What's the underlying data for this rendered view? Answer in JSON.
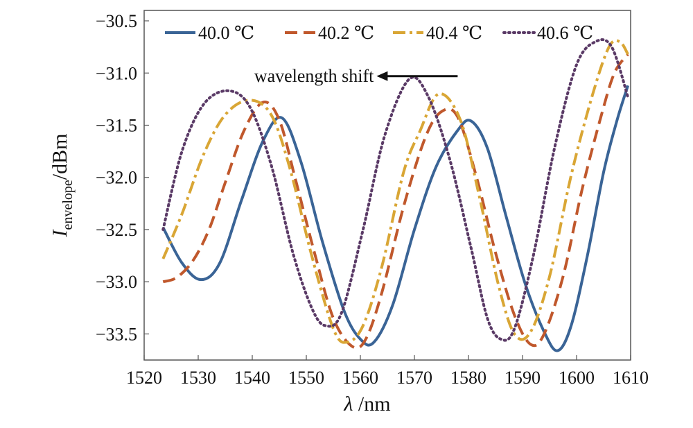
{
  "chart_data": {
    "type": "line",
    "title": "",
    "xlabel_symbol": "λ",
    "xlabel_unit": " /nm",
    "ylabel_symbol": "I",
    "ylabel_subscript": "envelope",
    "ylabel_unit": "/dBm",
    "xlim": [
      1520,
      1610
    ],
    "ylim": [
      -33.75,
      -30.4
    ],
    "xticks": [
      1520,
      1530,
      1540,
      1550,
      1560,
      1570,
      1580,
      1590,
      1600,
      1610
    ],
    "xtick_labels": [
      "1520",
      "1530",
      "1540",
      "1550",
      "1560",
      "1570",
      "1580",
      "1590",
      "1600",
      "1610"
    ],
    "yticks": [
      -30.5,
      -31.0,
      -31.5,
      -32.0,
      -32.5,
      -33.0,
      -33.5
    ],
    "ytick_labels": [
      "−30.5",
      "−31.0",
      "−31.5",
      "−32.0",
      "−32.5",
      "−33.0",
      "−33.5"
    ],
    "grid": false,
    "legend_position": "top",
    "annotation": {
      "text": "wavelength shift",
      "arrow_from_x": 1578,
      "arrow_to_x": 1563,
      "arrow_y": -31.03,
      "direction": "left"
    },
    "series": [
      {
        "name": "40.0 ℃",
        "color": "#3a6496",
        "style": "solid",
        "x": [
          1523.5,
          1527,
          1530.5,
          1534,
          1538,
          1542,
          1545.5,
          1549,
          1553,
          1557,
          1560,
          1562.5,
          1566,
          1570,
          1574,
          1578,
          1580.5,
          1583.5,
          1587,
          1590.5,
          1594,
          1596.5,
          1599,
          1602,
          1605,
          1607.5,
          1609.5
        ],
        "values": [
          -32.48,
          -32.82,
          -32.98,
          -32.82,
          -32.22,
          -31.65,
          -31.43,
          -31.85,
          -32.62,
          -33.28,
          -33.55,
          -33.58,
          -33.22,
          -32.5,
          -31.9,
          -31.55,
          -31.46,
          -31.72,
          -32.38,
          -33.02,
          -33.48,
          -33.66,
          -33.42,
          -32.75,
          -31.95,
          -31.45,
          -31.12
        ]
      },
      {
        "name": "40.2 ℃",
        "color": "#c0582c",
        "style": "dashed",
        "x": [
          1523.5,
          1526,
          1529,
          1532,
          1535,
          1538.5,
          1542,
          1545,
          1548,
          1551.5,
          1555,
          1558.5,
          1561,
          1564,
          1568,
          1572,
          1575,
          1578,
          1581.5,
          1585,
          1588.5,
          1591.5,
          1594,
          1597.5,
          1601,
          1604.5,
          1607,
          1609.5
        ],
        "values": [
          -33.0,
          -32.96,
          -32.8,
          -32.5,
          -32.05,
          -31.55,
          -31.28,
          -31.45,
          -32.02,
          -32.72,
          -33.35,
          -33.62,
          -33.55,
          -33.1,
          -32.28,
          -31.62,
          -31.37,
          -31.42,
          -32.0,
          -32.72,
          -33.32,
          -33.6,
          -33.5,
          -32.95,
          -32.12,
          -31.42,
          -31.0,
          -30.82
        ]
      },
      {
        "name": "40.4 ℃",
        "color": "#d9a635",
        "style": "dashdot",
        "x": [
          1523.5,
          1527,
          1531,
          1535,
          1539.5,
          1543.5,
          1547,
          1551,
          1555,
          1557.5,
          1560.5,
          1564,
          1568,
          1571,
          1574.5,
          1578.5,
          1582,
          1585.5,
          1588.5,
          1591.5,
          1595,
          1599,
          1603,
          1606,
          1608,
          1609.5
        ],
        "values": [
          -32.78,
          -32.35,
          -31.78,
          -31.4,
          -31.26,
          -31.4,
          -31.92,
          -32.75,
          -33.45,
          -33.58,
          -33.42,
          -32.85,
          -31.95,
          -31.56,
          -31.2,
          -31.45,
          -32.18,
          -33.02,
          -33.5,
          -33.48,
          -32.95,
          -31.98,
          -31.2,
          -30.75,
          -30.7,
          -30.82
        ]
      },
      {
        "name": "40.6 ℃",
        "color": "#5a3a66",
        "style": "dotted",
        "x": [
          1523.5,
          1527,
          1531,
          1535.5,
          1539.5,
          1543.5,
          1547.5,
          1551,
          1553.5,
          1556.5,
          1560.5,
          1564.5,
          1569,
          1572.5,
          1576.5,
          1580.5,
          1583.5,
          1586,
          1588.5,
          1592,
          1596,
          1600,
          1603.5,
          1606.5,
          1609.5
        ],
        "values": [
          -32.5,
          -31.75,
          -31.3,
          -31.17,
          -31.32,
          -31.88,
          -32.72,
          -33.25,
          -33.42,
          -33.3,
          -32.5,
          -31.6,
          -31.06,
          -31.22,
          -31.82,
          -32.68,
          -33.35,
          -33.55,
          -33.45,
          -32.75,
          -31.7,
          -30.92,
          -30.7,
          -30.75,
          -31.23
        ]
      }
    ]
  }
}
